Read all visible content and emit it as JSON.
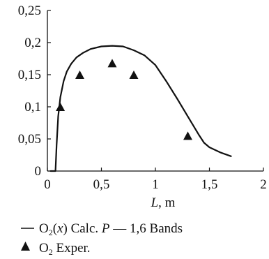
{
  "chart_data": {
    "type": "line",
    "title": "",
    "xlabel": {
      "symbol": "L",
      "unit": ", m"
    },
    "ylabel": "",
    "xlim": [
      0,
      2
    ],
    "ylim": [
      0,
      0.25
    ],
    "x_ticks": [
      "0",
      "0,5",
      "1",
      "1,5",
      "2"
    ],
    "x_tick_values": [
      0,
      0.5,
      1,
      1.5,
      2
    ],
    "y_ticks": [
      "0",
      "0,05",
      "0,1",
      "0,15",
      "0,2",
      "0,25"
    ],
    "y_tick_values": [
      0,
      0.05,
      0.1,
      0.15,
      0.2,
      0.25
    ],
    "grid": false,
    "legend_position": "bottom",
    "series": [
      {
        "name": "O2(x) Calc. P — 1,6 Bands",
        "kind": "line",
        "color": "#111111",
        "x": [
          0.03,
          0.075,
          0.085,
          0.1,
          0.12,
          0.15,
          0.18,
          0.22,
          0.27,
          0.33,
          0.4,
          0.5,
          0.6,
          0.7,
          0.8,
          0.9,
          1.0,
          1.1,
          1.2,
          1.3,
          1.4,
          1.45,
          1.5,
          1.6,
          1.7
        ],
        "y": [
          0.0,
          0.0,
          0.04,
          0.085,
          0.115,
          0.14,
          0.155,
          0.167,
          0.177,
          0.184,
          0.19,
          0.194,
          0.195,
          0.194,
          0.188,
          0.18,
          0.165,
          0.14,
          0.113,
          0.085,
          0.057,
          0.044,
          0.037,
          0.029,
          0.023
        ]
      },
      {
        "name": "O2 Exper.",
        "kind": "scatter",
        "marker": "triangle",
        "color": "#111111",
        "x": [
          0.12,
          0.3,
          0.6,
          0.8,
          1.3
        ],
        "y": [
          0.1,
          0.15,
          0.168,
          0.15,
          0.055
        ]
      }
    ]
  },
  "legend": {
    "calc": {
      "prefix": "O",
      "sub": "2",
      "paren": "(",
      "var": "x",
      "close": ")",
      "calc_text": " Calc. ",
      "p_var": "P",
      "suffix": " — 1,6 Bands"
    },
    "exper": {
      "prefix": "O",
      "sub": "2",
      "suffix": " Exper."
    }
  }
}
